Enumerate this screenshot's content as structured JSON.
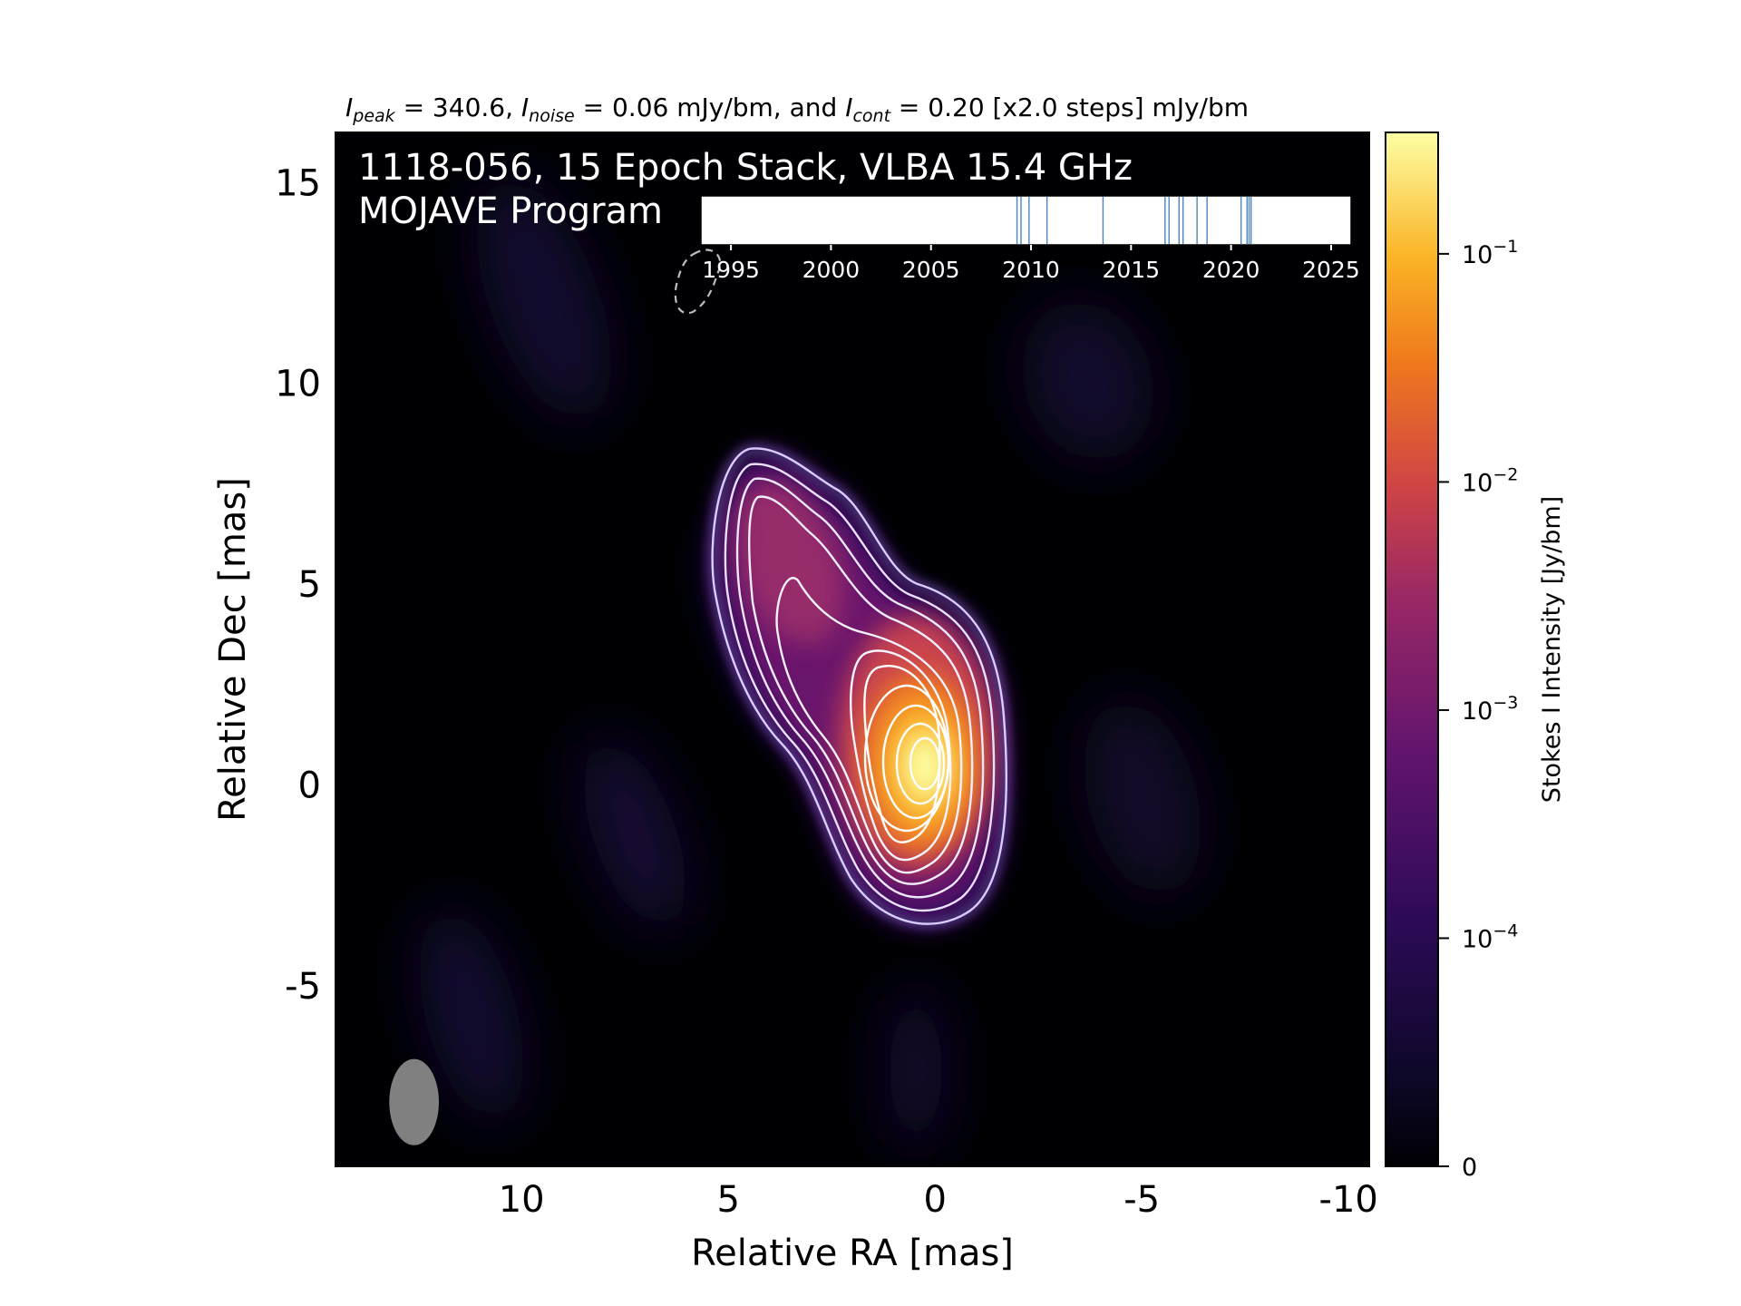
{
  "chart_data": {
    "type": "heatmap",
    "header": {
      "i_peak_sym": "I",
      "i_peak_sub": "peak",
      "i_peak_value": " = 340.6, ",
      "i_noise_sym": "I",
      "i_noise_sub": "noise",
      "i_noise_value": " = 0.06 mJy/bm, and ",
      "i_cont_sym": "I",
      "i_cont_sub": "cont",
      "i_cont_value": " = 0.20 [x2.0 steps] mJy/bm"
    },
    "title_line1": "1118-056, 15 Epoch Stack, VLBA 15.4 GHz",
    "title_line2": "MOJAVE Program",
    "xlabel": "Relative RA [mas]",
    "ylabel": "Relative Dec [mas]",
    "xlim": [
      14.5,
      -10.5
    ],
    "ylim": [
      -9.5,
      16.25
    ],
    "x_ticks": [
      10,
      5,
      0,
      -5,
      -10
    ],
    "x_tick_labels": [
      "10",
      "5",
      "0",
      "-5",
      "-10"
    ],
    "y_ticks": [
      15,
      10,
      5,
      0,
      -5
    ],
    "y_tick_labels": [
      "15",
      "10",
      "5",
      "0",
      "-5"
    ],
    "colorbar": {
      "label": "Stokes I Intensity [Jy/bm]",
      "scale": "symlog",
      "colormap": "inferno",
      "range": [
        0,
        0.3406
      ],
      "ticks": [
        {
          "value": 0.1,
          "base": "10",
          "exp": "−1"
        },
        {
          "value": 0.01,
          "base": "10",
          "exp": "−2"
        },
        {
          "value": 0.001,
          "base": "10",
          "exp": "−3"
        },
        {
          "value": 0.0001,
          "base": "10",
          "exp": "−4"
        },
        {
          "value": 0,
          "base": "0",
          "exp": ""
        }
      ]
    },
    "epoch_timeline": {
      "xlim": [
        1993.5,
        2026.0
      ],
      "ticks": [
        "1995",
        "2000",
        "2005",
        "2010",
        "2015",
        "2020",
        "2025"
      ],
      "epochs": [
        2009.3,
        2009.5,
        2009.9,
        2010.8,
        2013.6,
        2016.7,
        2016.9,
        2017.4,
        2017.6,
        2018.3,
        2018.8,
        2020.5,
        2020.8,
        2020.9,
        2021.0
      ]
    },
    "contour_levels_mjy": [
      0.2,
      0.4,
      0.8,
      1.6,
      3.2,
      6.4,
      12.8,
      25.6,
      51.2,
      102.4,
      204.8
    ],
    "beam": {
      "center_ra": 12.6,
      "center_dec": -7.9,
      "major_mas": 2.15,
      "minor_mas": 1.2,
      "pa_deg": 0
    }
  }
}
